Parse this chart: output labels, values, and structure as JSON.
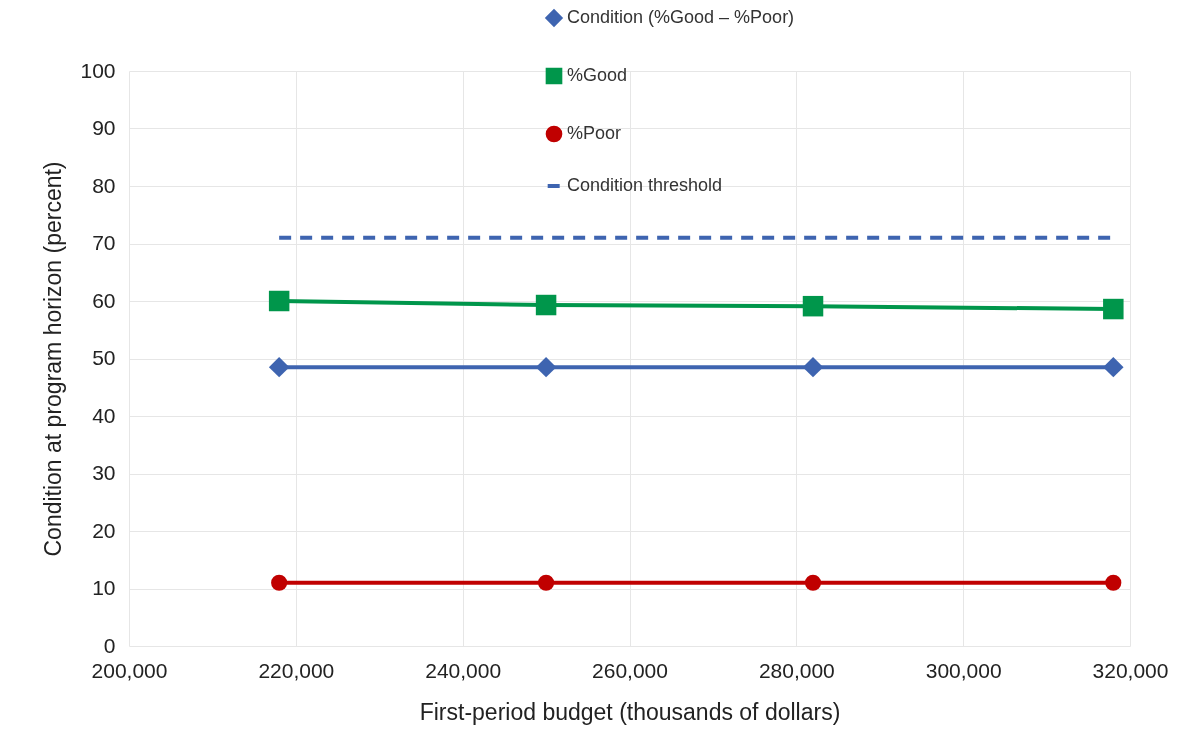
{
  "chart_data": {
    "type": "line",
    "xlabel": "First-period budget (thousands of dollars)",
    "ylabel": "Condition at program horizon (percent)",
    "x": [
      218000,
      250000,
      282000,
      318000
    ],
    "series": [
      {
        "name": "Condition (%Good – %Poor)",
        "color": "#3e64b0",
        "marker": "diamond",
        "values": [
          48.5,
          48.5,
          48.5,
          48.5
        ]
      },
      {
        "name": "%Good",
        "color": "#00964b",
        "marker": "square",
        "values": [
          60,
          59.3,
          59.1,
          58.6
        ]
      },
      {
        "name": "%Poor",
        "color": "#c00000",
        "marker": "circle",
        "values": [
          11,
          11,
          11,
          11
        ]
      },
      {
        "name": "Condition threshold",
        "color": "#3e64b0",
        "marker": "none",
        "line_style": "dashed",
        "values": [
          71,
          71,
          71,
          71
        ]
      }
    ],
    "xlim": [
      200000,
      320000
    ],
    "xticks": [
      {
        "value": 200000,
        "label": "200,000"
      },
      {
        "value": 220000,
        "label": "220,000"
      },
      {
        "value": 240000,
        "label": "240,000"
      },
      {
        "value": 260000,
        "label": "260,000"
      },
      {
        "value": 280000,
        "label": "280,000"
      },
      {
        "value": 300000,
        "label": "300,000"
      },
      {
        "value": 320000,
        "label": "320,000"
      }
    ],
    "ylim": [
      0,
      100
    ],
    "yticks": [
      0,
      10,
      20,
      30,
      40,
      50,
      60,
      70,
      80,
      90,
      100
    ],
    "grid": true,
    "legend": "top right",
    "line_style": "solid"
  }
}
